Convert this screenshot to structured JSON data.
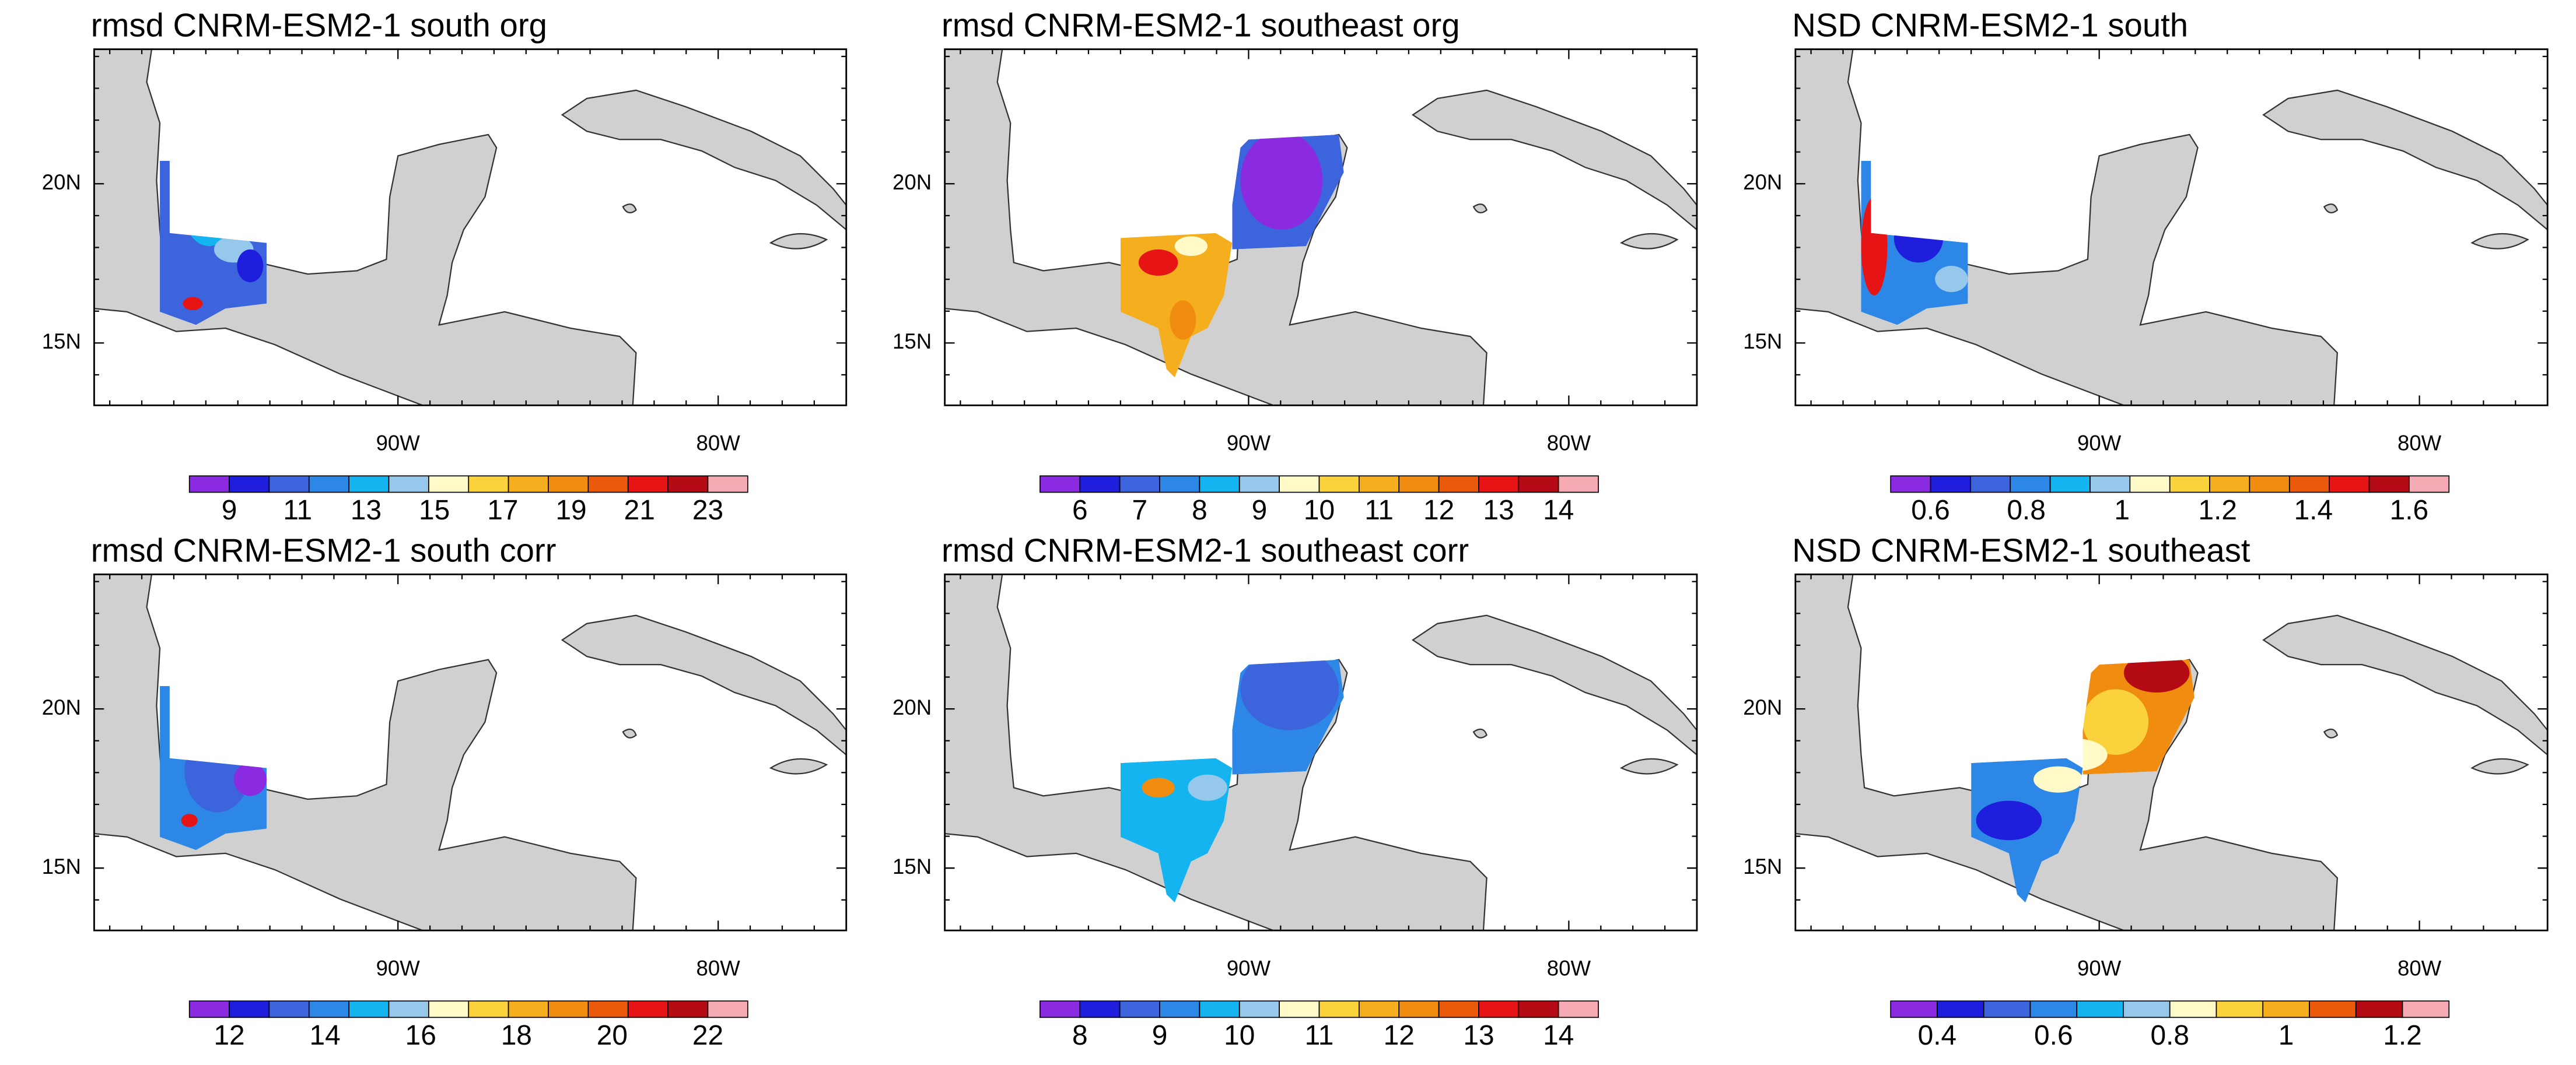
{
  "panels": [
    {
      "title": "rmsd CNRM-ESM2-1 south org",
      "lat_labels": [
        "20N",
        "15N"
      ],
      "lon_labels": [
        "90W",
        "80W"
      ],
      "colorbar": {
        "colors": [
          "#8a2be2",
          "#1e1edc",
          "#3c64dc",
          "#2d87e6",
          "#14b4f0",
          "#96c8eb",
          "#fffac8",
          "#fad23c",
          "#f5af1e",
          "#f08c0f",
          "#eb5a0a",
          "#e61414",
          "#b40a14",
          "#f5aab4"
        ],
        "labels": [
          "9",
          "11",
          "13",
          "15",
          "17",
          "19",
          "21",
          "23"
        ]
      }
    },
    {
      "title": "rmsd CNRM-ESM2-1 southeast org",
      "lat_labels": [
        "20N",
        "15N"
      ],
      "lon_labels": [
        "90W",
        "80W"
      ],
      "colorbar": {
        "colors": [
          "#8a2be2",
          "#1e1edc",
          "#3c64dc",
          "#2d87e6",
          "#14b4f0",
          "#96c8eb",
          "#fffac8",
          "#fad23c",
          "#f5af1e",
          "#f08c0f",
          "#eb5a0a",
          "#e61414",
          "#b40a14",
          "#f5aab4"
        ],
        "labels": [
          "6",
          "7",
          "8",
          "9",
          "10",
          "11",
          "12",
          "13",
          "14"
        ]
      }
    },
    {
      "title": "NSD CNRM-ESM2-1 south",
      "lat_labels": [
        "20N",
        "15N"
      ],
      "lon_labels": [
        "90W",
        "80W"
      ],
      "colorbar": {
        "colors": [
          "#8a2be2",
          "#1e1edc",
          "#3c64dc",
          "#2d87e6",
          "#14b4f0",
          "#96c8eb",
          "#fffac8",
          "#fad23c",
          "#f5af1e",
          "#f08c0f",
          "#eb5a0a",
          "#e61414",
          "#b40a14",
          "#f5aab4"
        ],
        "labels": [
          "0.6",
          "0.8",
          "1",
          "1.2",
          "1.4",
          "1.6"
        ]
      }
    },
    {
      "title": "rmsd CNRM-ESM2-1 south corr",
      "lat_labels": [
        "20N",
        "15N"
      ],
      "lon_labels": [
        "90W",
        "80W"
      ],
      "colorbar": {
        "colors": [
          "#8a2be2",
          "#1e1edc",
          "#3c64dc",
          "#2d87e6",
          "#14b4f0",
          "#96c8eb",
          "#fffac8",
          "#fad23c",
          "#f5af1e",
          "#f08c0f",
          "#eb5a0a",
          "#e61414",
          "#b40a14",
          "#f5aab4"
        ],
        "labels": [
          "12",
          "14",
          "16",
          "18",
          "20",
          "22"
        ]
      }
    },
    {
      "title": "rmsd CNRM-ESM2-1 southeast corr",
      "lat_labels": [
        "20N",
        "15N"
      ],
      "lon_labels": [
        "90W",
        "80W"
      ],
      "colorbar": {
        "colors": [
          "#8a2be2",
          "#1e1edc",
          "#3c64dc",
          "#2d87e6",
          "#14b4f0",
          "#96c8eb",
          "#fffac8",
          "#fad23c",
          "#f5af1e",
          "#f08c0f",
          "#eb5a0a",
          "#e61414",
          "#b40a14",
          "#f5aab4"
        ],
        "labels": [
          "8",
          "9",
          "10",
          "11",
          "12",
          "13",
          "14"
        ]
      }
    },
    {
      "title": "NSD CNRM-ESM2-1 southeast",
      "lat_labels": [
        "20N",
        "15N"
      ],
      "lon_labels": [
        "90W",
        "80W"
      ],
      "colorbar": {
        "colors": [
          "#8a2be2",
          "#1e1edc",
          "#3c64dc",
          "#2d87e6",
          "#14b4f0",
          "#96c8eb",
          "#fffac8",
          "#fad23c",
          "#f5af1e",
          "#eb5a0a",
          "#b40a14",
          "#f5aab4"
        ],
        "labels": [
          "0.4",
          "0.6",
          "0.8",
          "1",
          "1.2"
        ]
      }
    }
  ]
}
